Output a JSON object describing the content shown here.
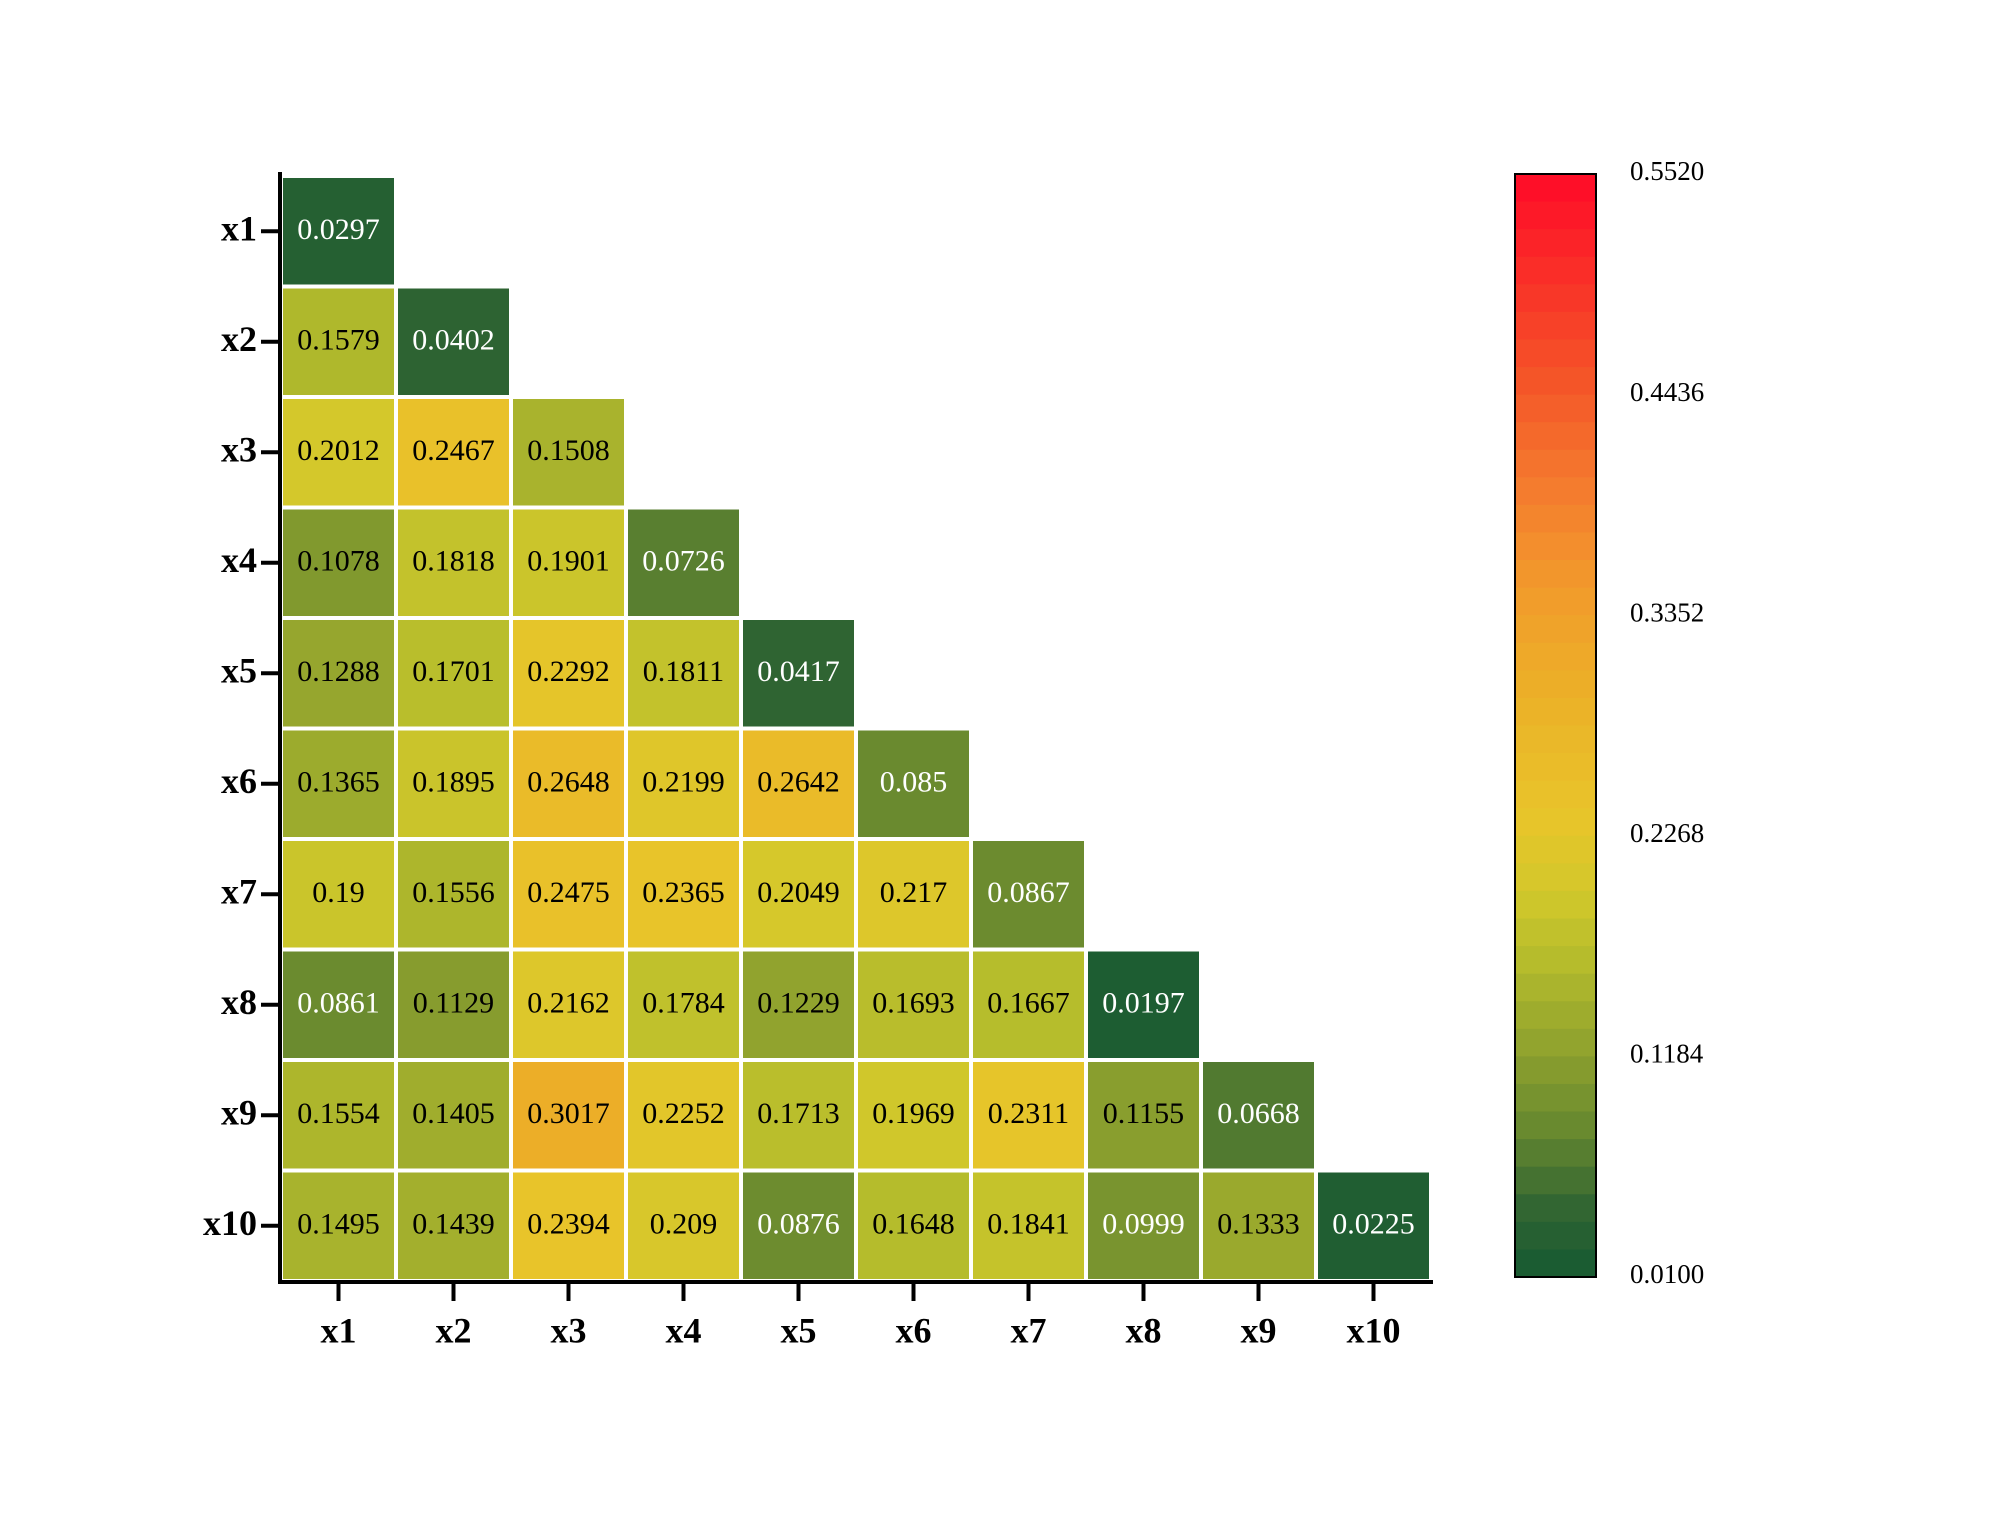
{
  "chart_data": {
    "type": "heatmap",
    "layout": "lower-triangular",
    "row_labels": [
      "x1",
      "x2",
      "x3",
      "x4",
      "x5",
      "x6",
      "x7",
      "x8",
      "x9",
      "x10"
    ],
    "col_labels": [
      "x1",
      "x2",
      "x3",
      "x4",
      "x5",
      "x6",
      "x7",
      "x8",
      "x9",
      "x10"
    ],
    "cells": [
      [
        {
          "value": 0.0297,
          "label": "0.0297"
        }
      ],
      [
        {
          "value": 0.1579,
          "label": "0.1579"
        },
        {
          "value": 0.0402,
          "label": "0.0402"
        }
      ],
      [
        {
          "value": 0.2012,
          "label": "0.2012"
        },
        {
          "value": 0.2467,
          "label": "0.2467"
        },
        {
          "value": 0.1508,
          "label": "0.1508"
        }
      ],
      [
        {
          "value": 0.1078,
          "label": "0.1078"
        },
        {
          "value": 0.1818,
          "label": "0.1818"
        },
        {
          "value": 0.1901,
          "label": "0.1901"
        },
        {
          "value": 0.0726,
          "label": "0.0726"
        }
      ],
      [
        {
          "value": 0.1288,
          "label": "0.1288"
        },
        {
          "value": 0.1701,
          "label": "0.1701"
        },
        {
          "value": 0.2292,
          "label": "0.2292"
        },
        {
          "value": 0.1811,
          "label": "0.1811"
        },
        {
          "value": 0.0417,
          "label": "0.0417"
        }
      ],
      [
        {
          "value": 0.1365,
          "label": "0.1365"
        },
        {
          "value": 0.1895,
          "label": "0.1895"
        },
        {
          "value": 0.2648,
          "label": "0.2648"
        },
        {
          "value": 0.2199,
          "label": "0.2199"
        },
        {
          "value": 0.2642,
          "label": "0.2642"
        },
        {
          "value": 0.085,
          "label": "0.085"
        }
      ],
      [
        {
          "value": 0.19,
          "label": "0.19"
        },
        {
          "value": 0.1556,
          "label": "0.1556"
        },
        {
          "value": 0.2475,
          "label": "0.2475"
        },
        {
          "value": 0.2365,
          "label": "0.2365"
        },
        {
          "value": 0.2049,
          "label": "0.2049"
        },
        {
          "value": 0.217,
          "label": "0.217"
        },
        {
          "value": 0.0867,
          "label": "0.0867"
        }
      ],
      [
        {
          "value": 0.0861,
          "label": "0.0861"
        },
        {
          "value": 0.1129,
          "label": "0.1129"
        },
        {
          "value": 0.2162,
          "label": "0.2162"
        },
        {
          "value": 0.1784,
          "label": "0.1784"
        },
        {
          "value": 0.1229,
          "label": "0.1229"
        },
        {
          "value": 0.1693,
          "label": "0.1693"
        },
        {
          "value": 0.1667,
          "label": "0.1667"
        },
        {
          "value": 0.0197,
          "label": "0.0197"
        }
      ],
      [
        {
          "value": 0.1554,
          "label": "0.1554"
        },
        {
          "value": 0.1405,
          "label": "0.1405"
        },
        {
          "value": 0.3017,
          "label": "0.3017"
        },
        {
          "value": 0.2252,
          "label": "0.2252"
        },
        {
          "value": 0.1713,
          "label": "0.1713"
        },
        {
          "value": 0.1969,
          "label": "0.1969"
        },
        {
          "value": 0.2311,
          "label": "0.2311"
        },
        {
          "value": 0.1155,
          "label": "0.1155"
        },
        {
          "value": 0.0668,
          "label": "0.0668"
        }
      ],
      [
        {
          "value": 0.1495,
          "label": "0.1495"
        },
        {
          "value": 0.1439,
          "label": "0.1439"
        },
        {
          "value": 0.2394,
          "label": "0.2394"
        },
        {
          "value": 0.209,
          "label": "0.209"
        },
        {
          "value": 0.0876,
          "label": "0.0876"
        },
        {
          "value": 0.1648,
          "label": "0.1648"
        },
        {
          "value": 0.1841,
          "label": "0.1841"
        },
        {
          "value": 0.0999,
          "label": "0.0999"
        },
        {
          "value": 0.1333,
          "label": "0.1333"
        },
        {
          "value": 0.0225,
          "label": "0.0225"
        }
      ]
    ],
    "colorbar": {
      "range": [
        0.01,
        0.552
      ],
      "ticks": [
        0.552,
        0.4436,
        0.3352,
        0.2268,
        0.1184,
        0.01
      ],
      "tick_labels": [
        "0.5520",
        "0.4436",
        "0.3352",
        "0.2268",
        "0.1184",
        "0.0100"
      ],
      "position": "right",
      "color_stops": [
        {
          "value": 0.01,
          "color": "#165a32"
        },
        {
          "value": 0.04,
          "color": "#2d6332"
        },
        {
          "value": 0.085,
          "color": "#6a8a2f"
        },
        {
          "value": 0.12,
          "color": "#8ea12e"
        },
        {
          "value": 0.165,
          "color": "#b5bc2c"
        },
        {
          "value": 0.2,
          "color": "#d3c82b"
        },
        {
          "value": 0.235,
          "color": "#e8c52a"
        },
        {
          "value": 0.3,
          "color": "#ecaf28"
        },
        {
          "value": 0.35,
          "color": "#f29a2c"
        },
        {
          "value": 0.4,
          "color": "#f47a2e"
        },
        {
          "value": 0.45,
          "color": "#f45528"
        },
        {
          "value": 0.552,
          "color": "#ff0a28"
        }
      ]
    },
    "text_color_threshold": 0.1,
    "grid": false
  },
  "colors": {
    "cell_border": "#ffffff",
    "axis": "#000000",
    "label_dark": "#000000",
    "label_light": "#ffffff"
  }
}
